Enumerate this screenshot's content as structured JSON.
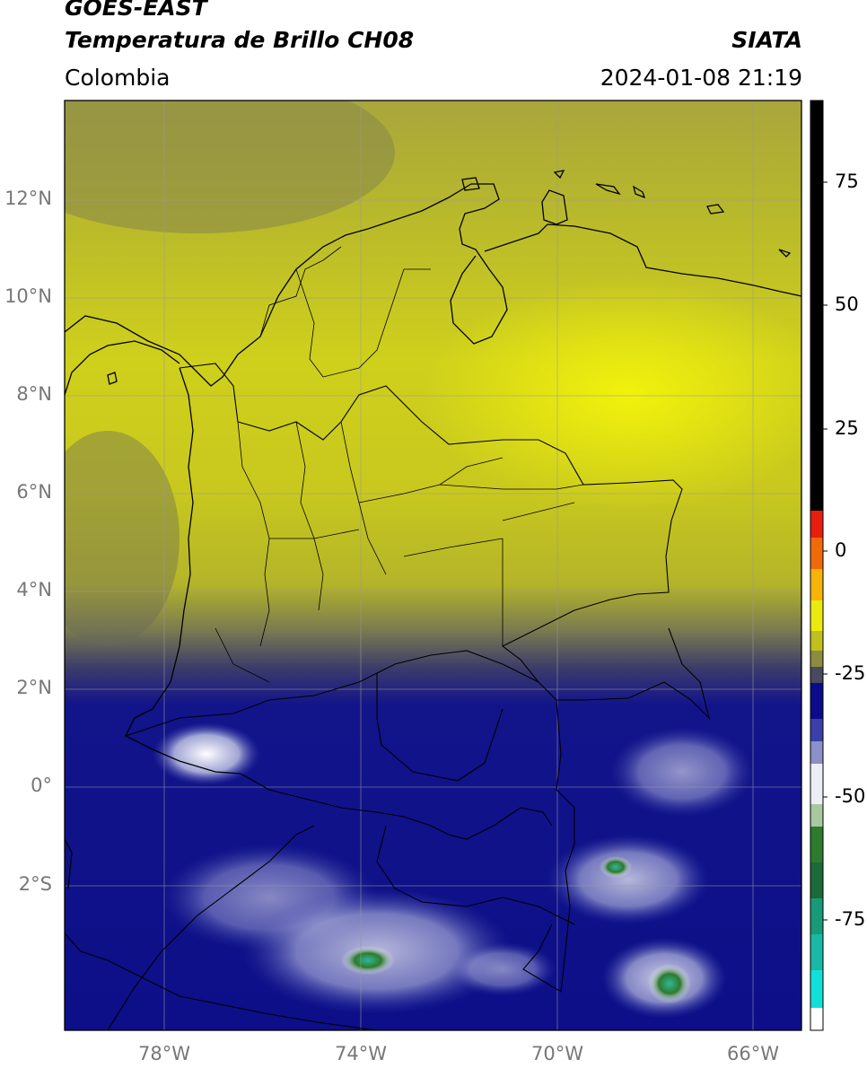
{
  "header": {
    "satellite": "GOES-EAST",
    "product": "Temperatura de Brillo CH08",
    "brand": "SIATA",
    "region": "Colombia",
    "timestamp": "2024-01-08 21:19"
  },
  "map": {
    "lat_labels": [
      "12°N",
      "10°N",
      "8°N",
      "6°N",
      "4°N",
      "2°N",
      "0°",
      "2°S"
    ],
    "lon_labels": [
      "78°W",
      "74°W",
      "70°W",
      "66°W"
    ]
  },
  "colorbar": {
    "tick_labels": [
      "75",
      "50",
      "25",
      "0",
      "-25",
      "-50",
      "-75"
    ],
    "colors": {
      "yellow": "#e8ea10",
      "olive": "#c4c41c",
      "gray": "#5a5a56",
      "navy": "#0a0c8a",
      "white": "#ffffff",
      "green": "#2e7a2e",
      "teal": "#1ec8b4",
      "red": "#e82010",
      "black": "#000000"
    }
  }
}
